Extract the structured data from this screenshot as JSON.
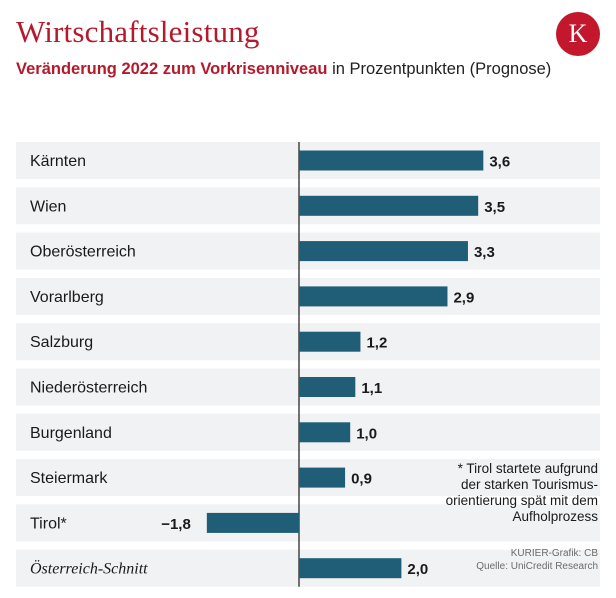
{
  "header": {
    "title": "Wirtschaftsleistung",
    "subtitle_highlight": "Veränderung 2022 zum Vorkrisenniveau",
    "subtitle_rest": " in Prozentpunkten (Prognose)",
    "logo_letter": "K"
  },
  "colors": {
    "bar": "#1f5e76",
    "row_bg": "#f0f2f4",
    "accent": "#b51a2c"
  },
  "chart_data": {
    "type": "bar",
    "orientation": "horizontal",
    "title": "Wirtschaftsleistung",
    "subtitle": "Veränderung 2022 zum Vorkrisenniveau in Prozentpunkten (Prognose)",
    "categories": [
      "Kärnten",
      "Wien",
      "Oberösterreich",
      "Vorarlberg",
      "Salzburg",
      "Niederösterreich",
      "Burgenland",
      "Steiermark",
      "Tirol*",
      "Österreich-Schnitt"
    ],
    "values": [
      3.6,
      3.5,
      3.3,
      2.9,
      1.2,
      1.1,
      1.0,
      0.9,
      -1.8,
      2.0
    ],
    "value_labels": [
      "3,6",
      "3,5",
      "3,3",
      "2,9",
      "1,2",
      "1,1",
      "1,0",
      "0,9",
      "−1,8",
      "2,0"
    ],
    "xlim": [
      -1.8,
      3.6
    ],
    "xlabel": "",
    "ylabel": ""
  },
  "footnote": {
    "lines": [
      "* Tirol startete aufgrund",
      "der starken Tourismus-",
      "orientierung spät mit dem",
      "Aufholprozess"
    ]
  },
  "credits": {
    "graphic": "KURIER-Grafik: CB",
    "source": "Quelle: UniCredit Research"
  }
}
